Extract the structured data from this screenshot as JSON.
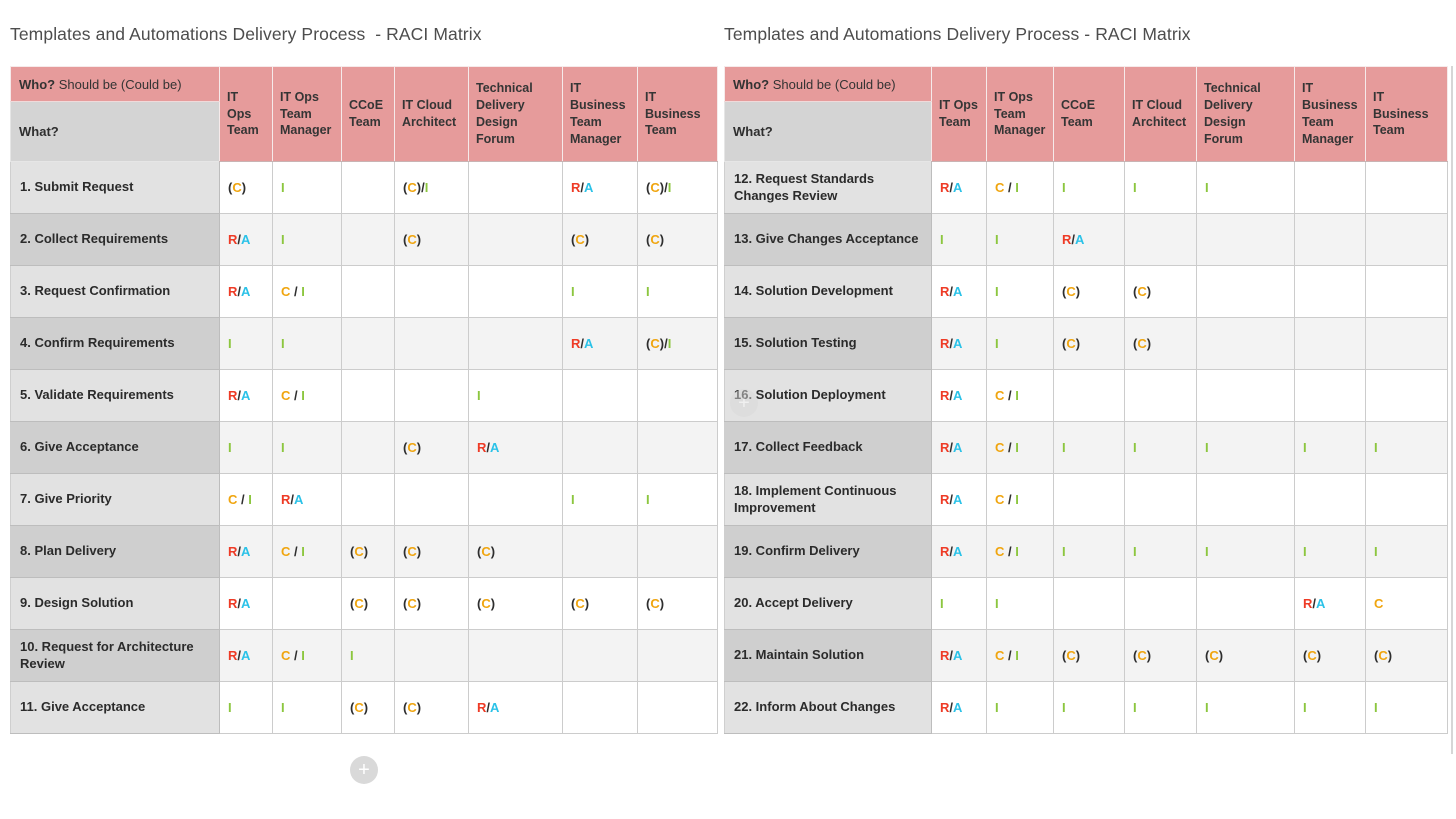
{
  "colors": {
    "R": "#ee3b26",
    "A": "#2bc2e8",
    "C": "#f0a50f",
    "I": "#8cc63f",
    "header_pink": "#e69b9b"
  },
  "add_button": {
    "icon": "+"
  },
  "ghost_add_button": {
    "icon": "+"
  },
  "tables": [
    {
      "title": "Templates and Automations Delivery Process  - RACI Matrix",
      "who_label": "Who?",
      "who_suffix": " Should be (Could be)",
      "what_label": "What?",
      "columns": [
        "IT Ops Team",
        "IT Ops Team Manager",
        "CCoE Team",
        "IT Cloud Architect",
        "Technical Delivery Design Forum",
        "IT Business Team Manager",
        "IT Business Team"
      ],
      "rows": [
        {
          "label": "1. Submit Request",
          "cells": [
            "(C)",
            "I",
            "",
            "(C)/I",
            "",
            "R/A",
            "(C)/I"
          ]
        },
        {
          "label": "2. Collect Requirements",
          "cells": [
            "R/A",
            "I",
            "",
            "(C)",
            "",
            "(C)",
            "(C)"
          ]
        },
        {
          "label": "3. Request Confirmation",
          "cells": [
            "R/A",
            "C / I",
            "",
            "",
            "",
            "I",
            "I"
          ]
        },
        {
          "label": "4. Confirm Requirements",
          "cells": [
            "I",
            "I",
            "",
            "",
            "",
            "R/A",
            "(C)/I"
          ]
        },
        {
          "label": "5. Validate Requirements",
          "cells": [
            "R/A",
            "C / I",
            "",
            "",
            "I",
            "",
            ""
          ]
        },
        {
          "label": "6. Give Acceptance",
          "cells": [
            "I",
            "I",
            "",
            "(C)",
            "R/A",
            "",
            ""
          ]
        },
        {
          "label": "7. Give Priority",
          "cells": [
            "C / I",
            "R/A",
            "",
            "",
            "",
            "I",
            "I"
          ]
        },
        {
          "label": "8. Plan Delivery",
          "cells": [
            "R/A",
            "C / I",
            "(C)",
            "(C)",
            "(C)",
            "",
            ""
          ]
        },
        {
          "label": "9. Design Solution",
          "cells": [
            "R/A",
            "",
            "(C)",
            "(C)",
            "(C)",
            "(C)",
            "(C)"
          ]
        },
        {
          "label": "10. Request for Architecture Review",
          "cells": [
            "R/A",
            "C / I",
            "I",
            "",
            "",
            "",
            ""
          ]
        },
        {
          "label": "11. Give Acceptance",
          "cells": [
            "I",
            "I",
            "(C)",
            "(C)",
            "R/A",
            "",
            ""
          ]
        }
      ]
    },
    {
      "title": "Templates and Automations Delivery Process - RACI Matrix",
      "who_label": "Who?",
      "who_suffix": " Should be (Could be)",
      "what_label": "What?",
      "columns": [
        "IT Ops Team",
        "IT Ops Team Manager",
        "CCoE Team",
        "IT Cloud Architect",
        "Technical Delivery Design Forum",
        "IT Business Team Manager",
        "IT Business Team"
      ],
      "rows": [
        {
          "label": "12. Request Standards Changes Review",
          "cells": [
            "R/A",
            "C / I",
            "I",
            "I",
            "I",
            "",
            ""
          ]
        },
        {
          "label": "13. Give Changes Acceptance",
          "cells": [
            "I",
            "I",
            "R/A",
            "",
            "",
            "",
            ""
          ]
        },
        {
          "label": "14. Solution Development",
          "cells": [
            "R/A",
            "I",
            "(C)",
            "(C)",
            "",
            "",
            ""
          ]
        },
        {
          "label": "15. Solution Testing",
          "cells": [
            "R/A",
            "I",
            "(C)",
            "(C)",
            "",
            "",
            ""
          ]
        },
        {
          "label": "16. Solution Deployment",
          "cells": [
            "R/A",
            "C / I",
            "",
            "",
            "",
            "",
            ""
          ]
        },
        {
          "label": "17. Collect Feedback",
          "cells": [
            "R/A",
            "C / I",
            "I",
            "I",
            "I",
            "I",
            "I"
          ]
        },
        {
          "label": "18. Implement Continuous Improvement",
          "cells": [
            "R/A",
            "C / I",
            "",
            "",
            "",
            "",
            ""
          ]
        },
        {
          "label": "19. Confirm Delivery",
          "cells": [
            "R/A",
            "C / I",
            "I",
            "I",
            "I",
            "I",
            "I"
          ]
        },
        {
          "label": "20. Accept Delivery",
          "cells": [
            "I",
            "I",
            "",
            "",
            "",
            "R/A",
            "C"
          ]
        },
        {
          "label": "21. Maintain Solution",
          "cells": [
            "R/A",
            "C / I",
            "(C)",
            "(C)",
            "(C)",
            "(C)",
            "(C)"
          ]
        },
        {
          "label": "22. Inform About Changes",
          "cells": [
            "R/A",
            "I",
            "I",
            "I",
            "I",
            "I",
            "I"
          ]
        }
      ]
    }
  ]
}
